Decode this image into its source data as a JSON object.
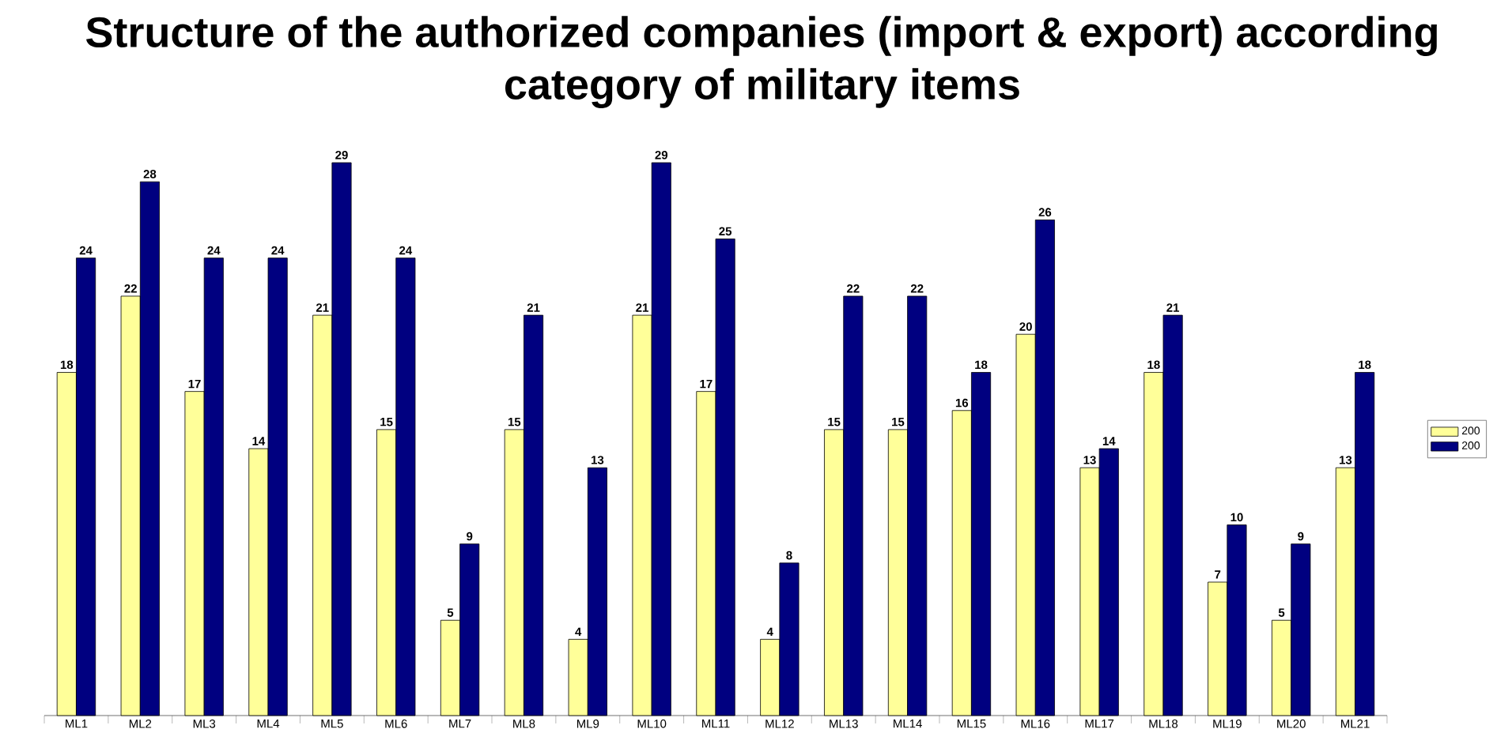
{
  "chart_data": {
    "type": "bar",
    "title": "Structure of the authorized companies (import & export) according category of military items",
    "categories": [
      "ML1",
      "ML2",
      "ML3",
      "ML4",
      "ML5",
      "ML6",
      "ML7",
      "ML8",
      "ML9",
      "ML10",
      "ML11",
      "ML12",
      "ML13",
      "ML14",
      "ML15",
      "ML16",
      "ML17",
      "ML18",
      "ML19",
      "ML20",
      "ML21"
    ],
    "series": [
      {
        "name": "200",
        "color": "#ffff99",
        "values": [
          18,
          22,
          17,
          14,
          21,
          15,
          5,
          15,
          4,
          21,
          17,
          4,
          15,
          15,
          16,
          20,
          13,
          18,
          7,
          5,
          13
        ]
      },
      {
        "name": "200",
        "color": "#000080",
        "values": [
          24,
          28,
          24,
          24,
          29,
          24,
          9,
          21,
          13,
          29,
          25,
          8,
          22,
          22,
          18,
          26,
          14,
          21,
          10,
          9,
          18
        ]
      }
    ],
    "data_labels": true,
    "legend": "right"
  }
}
